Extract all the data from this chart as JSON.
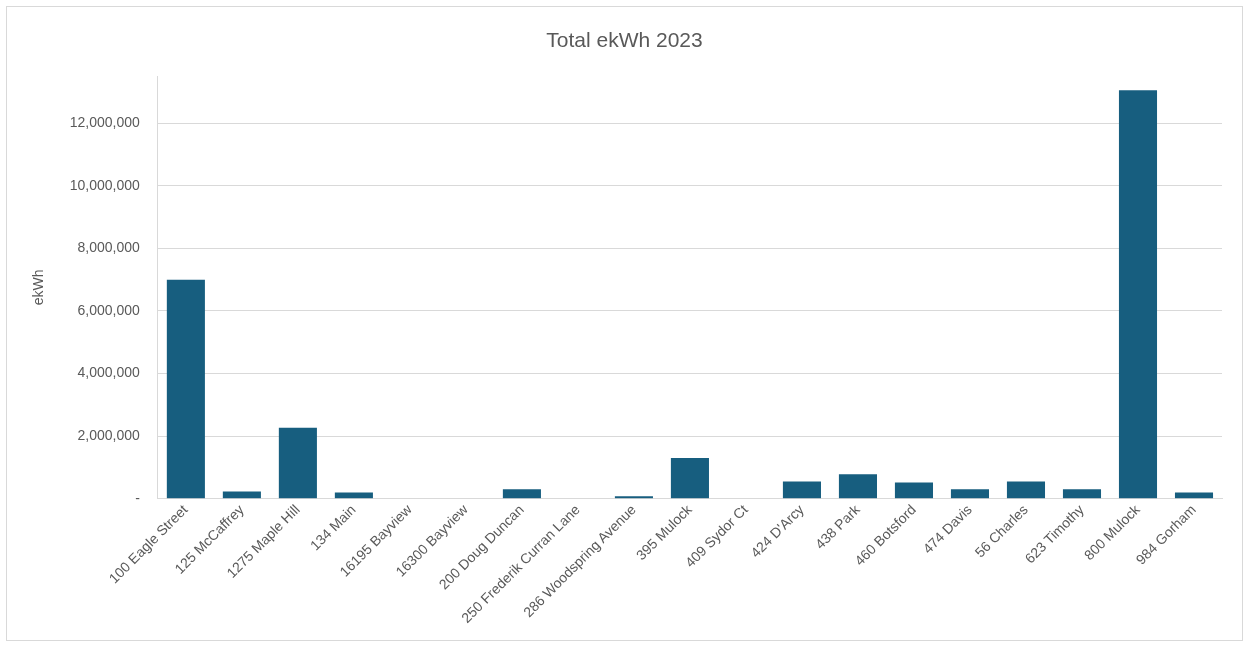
{
  "chart_data": {
    "type": "bar",
    "title": "Total ekWh 2023",
    "ylabel": "ekWh",
    "categories": [
      "100 Eagle Street",
      "125 McCaffrey",
      "1275 Maple Hill",
      "134 Main",
      "16195 Bayview",
      "16300 Bayview",
      "200 Doug Duncan",
      "250 Frederik Curran Lane",
      "286 Woodspring Avenue",
      "395 Mulock",
      "409 Sydor Ct",
      "424 D'Arcy",
      "438 Park",
      "460 Botsford",
      "474 Davis",
      "56 Charles",
      "623 Timothy",
      "800 Mulock",
      "984 Gorham"
    ],
    "values": [
      7000000,
      230000,
      2270000,
      200000,
      0,
      0,
      300000,
      0,
      80000,
      1300000,
      0,
      550000,
      780000,
      520000,
      300000,
      550000,
      300000,
      13050000,
      200000
    ],
    "color": "#175e7f",
    "ylim": [
      0,
      13500000
    ],
    "yticks": [
      {
        "value": 0,
        "label": "-"
      },
      {
        "value": 2000000,
        "label": "2,000,000"
      },
      {
        "value": 4000000,
        "label": "4,000,000"
      },
      {
        "value": 6000000,
        "label": "6,000,000"
      },
      {
        "value": 8000000,
        "label": "8,000,000"
      },
      {
        "value": 10000000,
        "label": "10,000,000"
      },
      {
        "value": 12000000,
        "label": "12,000,000"
      }
    ],
    "grid": "y",
    "legend": false
  }
}
